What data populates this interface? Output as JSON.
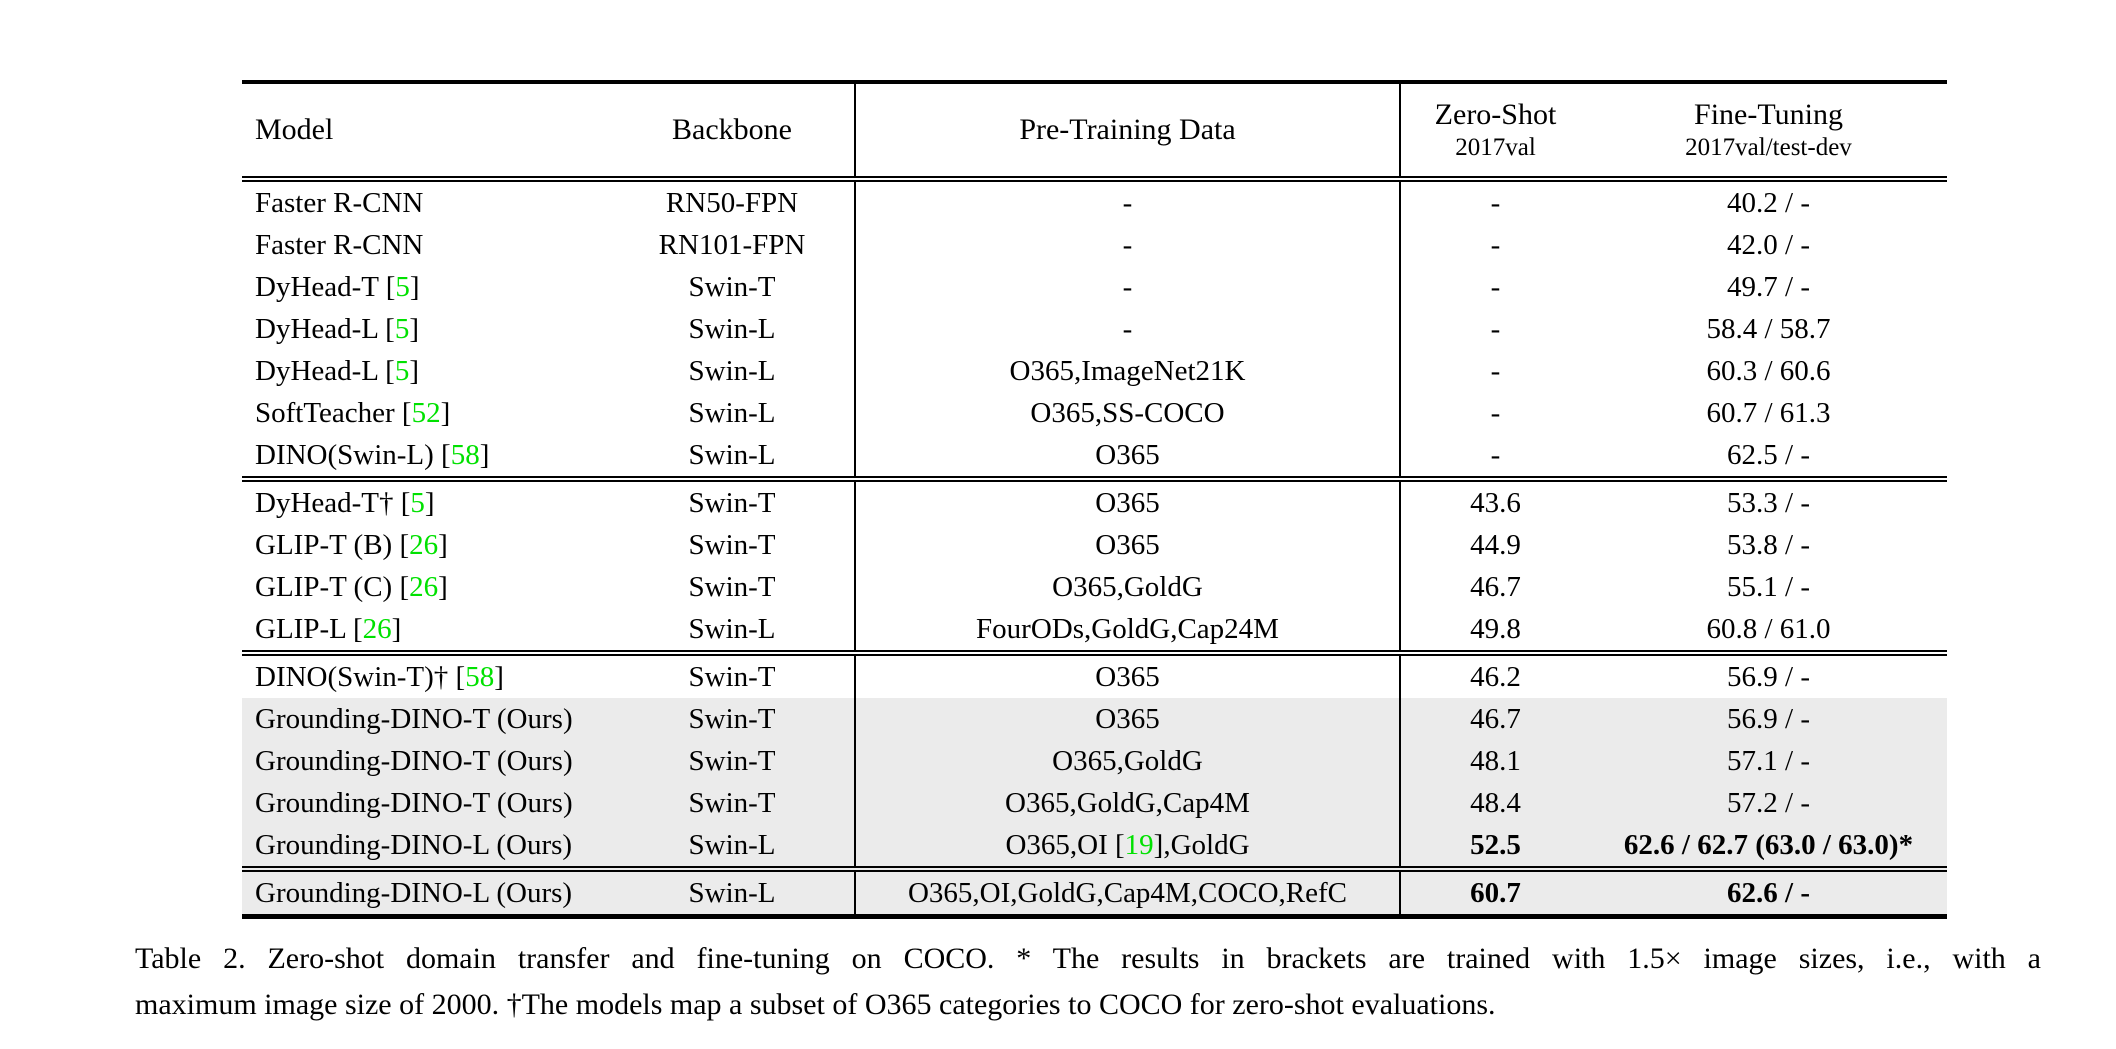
{
  "table": {
    "columns": {
      "model": "Model",
      "backbone": "Backbone",
      "pretrain": "Pre-Training Data",
      "zeroshot_line1": "Zero-Shot",
      "zeroshot_line2": "2017val",
      "finetune_line1": "Fine-Tuning",
      "finetune_line2": "2017val/test-dev"
    },
    "colors": {
      "citation_green": "#00e100",
      "highlight_gray": "#ebebeb",
      "rule_black": "#000000"
    },
    "blocks": [
      {
        "rows": [
          {
            "model": [
              {
                "t": "Faster R-CNN"
              }
            ],
            "backbone": "RN50-FPN",
            "pretrain": [
              {
                "t": "-"
              }
            ],
            "zeroshot": "-",
            "finetune": "40.2 / -",
            "highlight": false,
            "zeroshot_bold": false,
            "finetune_bold": false
          },
          {
            "model": [
              {
                "t": "Faster R-CNN"
              }
            ],
            "backbone": "RN101-FPN",
            "pretrain": [
              {
                "t": "-"
              }
            ],
            "zeroshot": "-",
            "finetune": "42.0 / -",
            "highlight": false,
            "zeroshot_bold": false,
            "finetune_bold": false
          },
          {
            "model": [
              {
                "t": "DyHead-T ["
              },
              {
                "t": "5",
                "green": true
              },
              {
                "t": "]"
              }
            ],
            "backbone": "Swin-T",
            "pretrain": [
              {
                "t": "-"
              }
            ],
            "zeroshot": "-",
            "finetune": "49.7 / -",
            "highlight": false,
            "zeroshot_bold": false,
            "finetune_bold": false
          },
          {
            "model": [
              {
                "t": "DyHead-L ["
              },
              {
                "t": "5",
                "green": true
              },
              {
                "t": "]"
              }
            ],
            "backbone": "Swin-L",
            "pretrain": [
              {
                "t": "-"
              }
            ],
            "zeroshot": "-",
            "finetune": "58.4 / 58.7",
            "highlight": false,
            "zeroshot_bold": false,
            "finetune_bold": false
          },
          {
            "model": [
              {
                "t": "DyHead-L ["
              },
              {
                "t": "5",
                "green": true
              },
              {
                "t": "]"
              }
            ],
            "backbone": "Swin-L",
            "pretrain": [
              {
                "t": "O365,ImageNet21K"
              }
            ],
            "zeroshot": "-",
            "finetune": "60.3 / 60.6",
            "highlight": false,
            "zeroshot_bold": false,
            "finetune_bold": false
          },
          {
            "model": [
              {
                "t": "SoftTeacher ["
              },
              {
                "t": "52",
                "green": true
              },
              {
                "t": "]"
              }
            ],
            "backbone": "Swin-L",
            "pretrain": [
              {
                "t": "O365,SS-COCO"
              }
            ],
            "zeroshot": "-",
            "finetune": "60.7 / 61.3",
            "highlight": false,
            "zeroshot_bold": false,
            "finetune_bold": false
          },
          {
            "model": [
              {
                "t": "DINO(Swin-L) ["
              },
              {
                "t": "58",
                "green": true
              },
              {
                "t": "]"
              }
            ],
            "backbone": "Swin-L",
            "pretrain": [
              {
                "t": "O365"
              }
            ],
            "zeroshot": "-",
            "finetune": "62.5 / -",
            "highlight": false,
            "zeroshot_bold": false,
            "finetune_bold": false
          }
        ]
      },
      {
        "rows": [
          {
            "model": [
              {
                "t": "DyHead-T† ["
              },
              {
                "t": "5",
                "green": true
              },
              {
                "t": "]"
              }
            ],
            "backbone": "Swin-T",
            "pretrain": [
              {
                "t": "O365"
              }
            ],
            "zeroshot": "43.6",
            "finetune": "53.3 / -",
            "highlight": false,
            "zeroshot_bold": false,
            "finetune_bold": false
          },
          {
            "model": [
              {
                "t": "GLIP-T (B) ["
              },
              {
                "t": "26",
                "green": true
              },
              {
                "t": "]"
              }
            ],
            "backbone": "Swin-T",
            "pretrain": [
              {
                "t": "O365"
              }
            ],
            "zeroshot": "44.9",
            "finetune": "53.8 / -",
            "highlight": false,
            "zeroshot_bold": false,
            "finetune_bold": false
          },
          {
            "model": [
              {
                "t": "GLIP-T (C) ["
              },
              {
                "t": "26",
                "green": true
              },
              {
                "t": "]"
              }
            ],
            "backbone": "Swin-T",
            "pretrain": [
              {
                "t": "O365,GoldG"
              }
            ],
            "zeroshot": "46.7",
            "finetune": "55.1 / -",
            "highlight": false,
            "zeroshot_bold": false,
            "finetune_bold": false
          },
          {
            "model": [
              {
                "t": "GLIP-L ["
              },
              {
                "t": "26",
                "green": true
              },
              {
                "t": "]"
              }
            ],
            "backbone": "Swin-L",
            "pretrain": [
              {
                "t": "FourODs,GoldG,Cap24M"
              }
            ],
            "zeroshot": "49.8",
            "finetune": "60.8 / 61.0",
            "highlight": false,
            "zeroshot_bold": false,
            "finetune_bold": false
          }
        ]
      },
      {
        "rows": [
          {
            "model": [
              {
                "t": "DINO(Swin-T)† ["
              },
              {
                "t": "58",
                "green": true
              },
              {
                "t": "]"
              }
            ],
            "backbone": "Swin-T",
            "pretrain": [
              {
                "t": "O365"
              }
            ],
            "zeroshot": "46.2",
            "finetune": "56.9 / -",
            "highlight": false,
            "zeroshot_bold": false,
            "finetune_bold": false
          },
          {
            "model": [
              {
                "t": "Grounding-DINO-T (Ours)"
              }
            ],
            "backbone": "Swin-T",
            "pretrain": [
              {
                "t": "O365"
              }
            ],
            "zeroshot": "46.7",
            "finetune": "56.9 / -",
            "highlight": true,
            "zeroshot_bold": false,
            "finetune_bold": false
          },
          {
            "model": [
              {
                "t": "Grounding-DINO-T (Ours)"
              }
            ],
            "backbone": "Swin-T",
            "pretrain": [
              {
                "t": "O365,GoldG"
              }
            ],
            "zeroshot": "48.1",
            "finetune": "57.1 / -",
            "highlight": true,
            "zeroshot_bold": false,
            "finetune_bold": false
          },
          {
            "model": [
              {
                "t": "Grounding-DINO-T (Ours)"
              }
            ],
            "backbone": "Swin-T",
            "pretrain": [
              {
                "t": "O365,GoldG,Cap4M"
              }
            ],
            "zeroshot": "48.4",
            "finetune": "57.2 / -",
            "highlight": true,
            "zeroshot_bold": false,
            "finetune_bold": false
          },
          {
            "model": [
              {
                "t": "Grounding-DINO-L (Ours)"
              }
            ],
            "backbone": "Swin-L",
            "pretrain": [
              {
                "t": "O365,OI ["
              },
              {
                "t": "19",
                "green": true
              },
              {
                "t": "],GoldG"
              }
            ],
            "zeroshot": "52.5",
            "finetune": "62.6 / 62.7 (63.0 / 63.0)*",
            "highlight": true,
            "zeroshot_bold": true,
            "finetune_bold": true
          }
        ]
      },
      {
        "rows": [
          {
            "model": [
              {
                "t": "Grounding-DINO-L (Ours)"
              }
            ],
            "backbone": "Swin-L",
            "pretrain": [
              {
                "t": "O365,OI,GoldG,Cap4M,COCO,RefC"
              }
            ],
            "zeroshot": "60.7",
            "finetune": "62.6 / -",
            "highlight": true,
            "zeroshot_bold": true,
            "finetune_bold": true
          }
        ]
      }
    ]
  },
  "caption": {
    "line1": "Table 2.  Zero-shot domain transfer and fine-tuning on COCO. * The results in brackets are trained with 1.5× image sizes, i.e., with a",
    "line2": "maximum image size of 2000. †The models map a subset of O365 categories to COCO for zero-shot evaluations."
  }
}
